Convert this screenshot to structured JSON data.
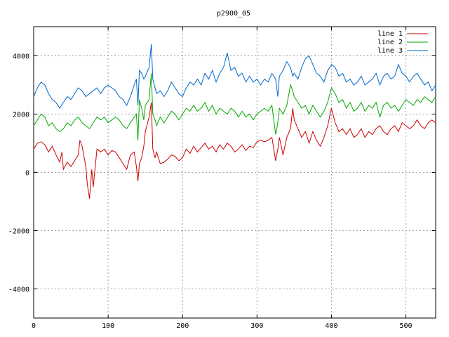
{
  "chart_data": {
    "type": "line",
    "title": "p2900_05",
    "xlabel": "",
    "ylabel": "",
    "xlim": [
      0,
      540
    ],
    "ylim": [
      -5000,
      5000
    ],
    "x_ticks": [
      0,
      100,
      200,
      300,
      400,
      500
    ],
    "x_tick_labels": [
      "0",
      "100",
      "200",
      "300",
      "400",
      "500"
    ],
    "y_ticks": [
      -4000,
      -2000,
      0,
      2000,
      4000
    ],
    "y_tick_labels": [
      "-4000",
      "-2000",
      "0",
      "2000",
      "4000"
    ],
    "grid": true,
    "legend_position": "top-right",
    "series": [
      {
        "name": "line 1",
        "color": "#cc0000",
        "x": [
          0,
          5,
          10,
          15,
          20,
          25,
          30,
          35,
          38,
          40,
          45,
          50,
          55,
          60,
          62,
          65,
          70,
          72,
          75,
          78,
          80,
          85,
          90,
          95,
          100,
          105,
          110,
          115,
          120,
          125,
          130,
          135,
          138,
          140,
          142,
          145,
          148,
          150,
          155,
          158,
          160,
          163,
          165,
          170,
          175,
          180,
          185,
          190,
          195,
          200,
          205,
          210,
          215,
          220,
          225,
          230,
          235,
          240,
          245,
          250,
          255,
          260,
          265,
          270,
          275,
          280,
          285,
          290,
          295,
          300,
          305,
          310,
          315,
          320,
          325,
          328,
          330,
          335,
          340,
          345,
          348,
          350,
          355,
          360,
          365,
          370,
          375,
          380,
          385,
          390,
          395,
          400,
          405,
          410,
          415,
          420,
          425,
          430,
          435,
          440,
          445,
          450,
          455,
          460,
          465,
          470,
          475,
          480,
          485,
          490,
          495,
          500,
          505,
          510,
          515,
          520,
          525,
          530,
          535,
          540
        ],
        "y": [
          800,
          1000,
          1050,
          950,
          700,
          900,
          600,
          350,
          700,
          100,
          350,
          200,
          400,
          600,
          1100,
          900,
          200,
          -400,
          -900,
          100,
          -500,
          800,
          700,
          800,
          600,
          750,
          700,
          500,
          300,
          100,
          600,
          700,
          200,
          -300,
          300,
          500,
          900,
          1400,
          1900,
          2400,
          800,
          500,
          700,
          300,
          350,
          450,
          600,
          550,
          400,
          500,
          800,
          650,
          900,
          700,
          850,
          1000,
          800,
          900,
          700,
          950,
          800,
          1000,
          900,
          700,
          800,
          950,
          750,
          900,
          850,
          1050,
          1100,
          1050,
          1100,
          1200,
          400,
          800,
          1200,
          600,
          1200,
          1500,
          2200,
          1800,
          1500,
          1200,
          1400,
          1000,
          1400,
          1100,
          900,
          1200,
          1600,
          2200,
          1700,
          1400,
          1500,
          1300,
          1500,
          1200,
          1300,
          1500,
          1200,
          1400,
          1300,
          1500,
          1600,
          1400,
          1300,
          1500,
          1600,
          1400,
          1700,
          1600,
          1500,
          1600,
          1800,
          1600,
          1500,
          1700,
          1800,
          1700
        ]
      },
      {
        "name": "line 2",
        "color": "#00aa00",
        "x": [
          0,
          5,
          10,
          15,
          20,
          25,
          30,
          35,
          40,
          45,
          50,
          55,
          60,
          65,
          70,
          75,
          80,
          85,
          90,
          95,
          100,
          105,
          110,
          115,
          120,
          125,
          130,
          135,
          138,
          140,
          142,
          145,
          148,
          150,
          155,
          158,
          160,
          163,
          165,
          170,
          175,
          180,
          185,
          190,
          195,
          200,
          205,
          210,
          215,
          220,
          225,
          230,
          235,
          240,
          245,
          250,
          255,
          260,
          265,
          270,
          275,
          280,
          285,
          290,
          295,
          300,
          305,
          310,
          315,
          320,
          325,
          328,
          330,
          335,
          340,
          345,
          348,
          350,
          355,
          360,
          365,
          370,
          375,
          380,
          385,
          390,
          395,
          400,
          405,
          410,
          415,
          420,
          425,
          430,
          435,
          440,
          445,
          450,
          455,
          460,
          465,
          470,
          475,
          480,
          485,
          490,
          495,
          500,
          505,
          510,
          515,
          520,
          525,
          530,
          535,
          540
        ],
        "y": [
          1600,
          1800,
          2000,
          1900,
          1600,
          1700,
          1500,
          1400,
          1500,
          1700,
          1600,
          1800,
          1900,
          1700,
          1600,
          1500,
          1700,
          1900,
          1800,
          1900,
          1700,
          1800,
          1900,
          1800,
          1600,
          1500,
          1700,
          1900,
          2000,
          1100,
          2500,
          2200,
          1800,
          2300,
          2500,
          3400,
          2000,
          1800,
          1600,
          1900,
          1700,
          1900,
          2100,
          2000,
          1800,
          2000,
          2200,
          2100,
          2300,
          2100,
          2200,
          2400,
          2100,
          2300,
          2000,
          2200,
          2100,
          2000,
          2200,
          2100,
          1900,
          2100,
          1900,
          2000,
          1800,
          2000,
          2100,
          2200,
          2100,
          2300,
          1300,
          1700,
          2200,
          2000,
          2300,
          3000,
          2800,
          2600,
          2400,
          2200,
          2300,
          2000,
          2300,
          2100,
          1900,
          2100,
          2400,
          2900,
          2700,
          2400,
          2500,
          2200,
          2400,
          2100,
          2200,
          2400,
          2100,
          2300,
          2200,
          2400,
          1900,
          2300,
          2400,
          2200,
          2300,
          2100,
          2300,
          2500,
          2400,
          2300,
          2500,
          2400,
          2600,
          2500,
          2400,
          2600
        ]
      },
      {
        "name": "line 3",
        "color": "#0066cc",
        "x": [
          0,
          5,
          10,
          15,
          20,
          25,
          30,
          35,
          40,
          45,
          50,
          55,
          60,
          65,
          70,
          75,
          80,
          85,
          90,
          95,
          100,
          105,
          110,
          115,
          120,
          125,
          130,
          135,
          138,
          140,
          142,
          145,
          148,
          150,
          155,
          158,
          160,
          163,
          165,
          170,
          175,
          180,
          185,
          190,
          195,
          200,
          205,
          210,
          215,
          220,
          225,
          230,
          235,
          240,
          245,
          250,
          255,
          260,
          265,
          270,
          275,
          280,
          285,
          290,
          295,
          300,
          305,
          310,
          315,
          320,
          325,
          328,
          330,
          335,
          340,
          345,
          348,
          350,
          355,
          360,
          365,
          370,
          375,
          380,
          385,
          390,
          395,
          400,
          405,
          410,
          415,
          420,
          425,
          430,
          435,
          440,
          445,
          450,
          455,
          460,
          465,
          470,
          475,
          480,
          485,
          490,
          495,
          500,
          505,
          510,
          515,
          520,
          525,
          530,
          535,
          540
        ],
        "y": [
          2600,
          2900,
          3100,
          3000,
          2700,
          2500,
          2400,
          2200,
          2400,
          2600,
          2500,
          2700,
          2900,
          2800,
          2600,
          2700,
          2800,
          2900,
          2700,
          2900,
          3000,
          2900,
          2800,
          2600,
          2500,
          2300,
          2600,
          3000,
          3200,
          2300,
          3500,
          3400,
          3200,
          3300,
          3600,
          4400,
          3200,
          2900,
          2700,
          2800,
          2600,
          2800,
          3100,
          2900,
          2700,
          2600,
          2900,
          3100,
          3000,
          3200,
          3000,
          3400,
          3200,
          3500,
          3100,
          3400,
          3600,
          4100,
          3500,
          3600,
          3300,
          3400,
          3100,
          3300,
          3100,
          3200,
          3000,
          3200,
          3100,
          3400,
          3200,
          2600,
          3300,
          3500,
          3800,
          3600,
          3300,
          3400,
          3200,
          3600,
          3900,
          4000,
          3700,
          3400,
          3300,
          3100,
          3500,
          3700,
          3600,
          3300,
          3400,
          3100,
          3200,
          3000,
          3100,
          3300,
          3000,
          3100,
          3200,
          3400,
          3000,
          3300,
          3400,
          3200,
          3300,
          3700,
          3400,
          3300,
          3100,
          3300,
          3400,
          3200,
          3000,
          3100,
          2800,
          3000
        ]
      }
    ]
  }
}
